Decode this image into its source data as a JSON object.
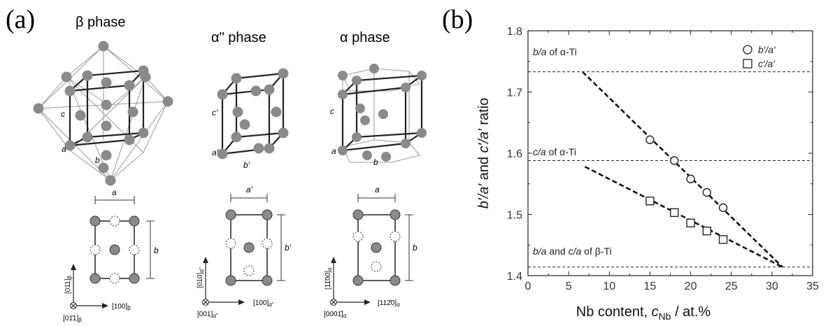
{
  "panel_a": {
    "label": "(a)",
    "beta": {
      "title": "β phase",
      "axis_c": "c",
      "axis_a": "a",
      "axis_b": "b",
      "dim_a": "a",
      "dim_b": "b",
      "dir_vertical": "[011]",
      "dir_vertical_sub": "β",
      "dir_horizontal": "[100]",
      "dir_horizontal_sub": "β",
      "dir_normal": "[01̄1]",
      "dir_normal_sub": "β"
    },
    "alpha_dd": {
      "title": "α\" phase",
      "axis_c": "c′",
      "axis_a": "a′",
      "axis_b": "b′",
      "dim_a": "a′",
      "dim_b": "b′",
      "dir_vertical": "[010]",
      "dir_vertical_sub": "α\"",
      "dir_horizontal": "[100]",
      "dir_horizontal_sub": "α\"",
      "dir_normal": "[001]",
      "dir_normal_sub": "α\""
    },
    "alpha": {
      "title": "α phase",
      "axis_c": "c",
      "axis_a": "a",
      "axis_b": "b",
      "dim_a": "a",
      "dim_b": "b",
      "dir_vertical": "[11̄00]",
      "dir_vertical_sub": "α",
      "dir_horizontal": "[112̄0]",
      "dir_horizontal_sub": "α",
      "dir_normal": "[0001̄]",
      "dir_normal_sub": "α"
    }
  },
  "panel_b": {
    "label": "(b)"
  },
  "chart_data": {
    "type": "scatter",
    "xlabel_main": "Nb content, ",
    "xlabel_var": "c",
    "xlabel_sub": "Nb",
    "xlabel_unit": " / at.%",
    "ylabel_b": "b′/a′",
    "ylabel_mid": " and ",
    "ylabel_c": "c′/a′",
    "ylabel_end": " ratio",
    "xlim": [
      0,
      35
    ],
    "ylim": [
      1.4,
      1.8
    ],
    "x_ticks": [
      0,
      5,
      10,
      15,
      20,
      25,
      30,
      35
    ],
    "y_ticks": [
      1.4,
      1.5,
      1.6,
      1.7,
      1.8
    ],
    "x_tick_labels": [
      "0",
      "5",
      "10",
      "15",
      "20",
      "25",
      "30",
      "35"
    ],
    "y_tick_labels": [
      "1.4",
      "1.5",
      "1.6",
      "1.7",
      "1.8"
    ],
    "legend_position": "top-right",
    "series": [
      {
        "name": "b′/a′",
        "marker": "circle",
        "x": [
          15,
          18,
          20,
          22,
          24
        ],
        "y": [
          1.622,
          1.588,
          1.558,
          1.536,
          1.511
        ]
      },
      {
        "name": "c′/a′",
        "marker": "square",
        "x": [
          15,
          18,
          20,
          22,
          24
        ],
        "y": [
          1.522,
          1.503,
          1.486,
          1.473,
          1.459
        ]
      }
    ],
    "fit_lines": [
      {
        "x": [
          6.7,
          31.3
        ],
        "y": [
          1.733,
          1.414
        ]
      },
      {
        "x": [
          7.0,
          31.3
        ],
        "y": [
          1.578,
          1.414
        ]
      }
    ],
    "reference_lines": [
      {
        "y": 1.733,
        "prefix": "b/a",
        "suffix": " of α-Ti"
      },
      {
        "y": 1.588,
        "prefix": "c/a",
        "suffix": " of α-Ti"
      },
      {
        "y": 1.414,
        "prefix": "b/a",
        "middle": " and ",
        "prefix2": "c/a",
        "suffix": " of β-Ti"
      }
    ]
  }
}
